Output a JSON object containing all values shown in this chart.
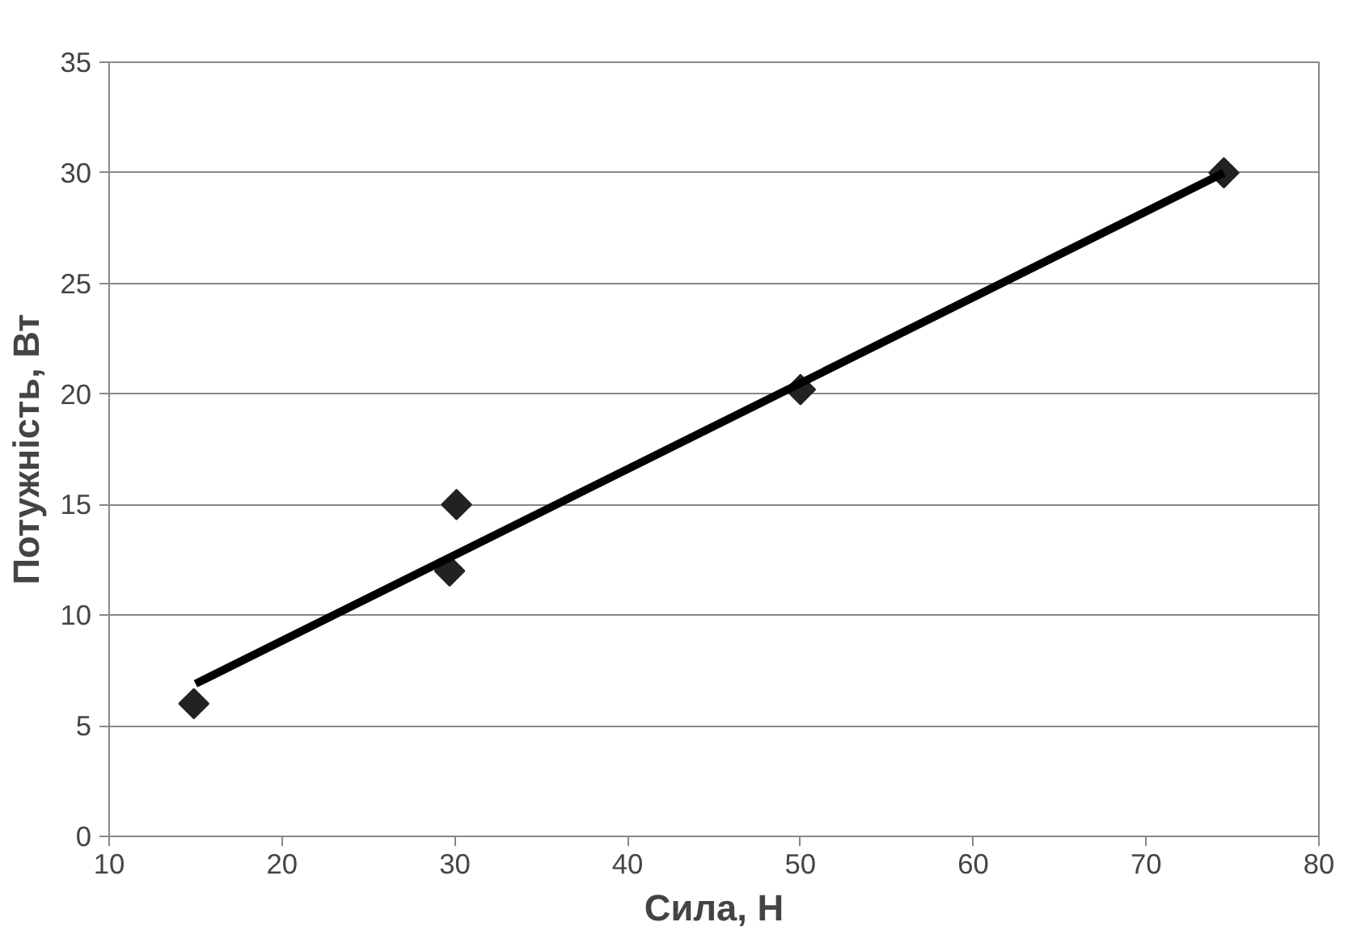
{
  "chart_data": {
    "type": "scatter",
    "xlabel": "Сила, Н",
    "ylabel": "Потужність, Вт",
    "xlim": [
      10,
      80
    ],
    "xticks": [
      10,
      20,
      30,
      40,
      50,
      60,
      70,
      80
    ],
    "ylim": [
      0,
      35
    ],
    "yticks": [
      0,
      5,
      10,
      15,
      20,
      25,
      30,
      35
    ],
    "grid": "y",
    "series": [
      {
        "color": "#222222",
        "marker": "diamond",
        "x": [
          14.9,
          29.7,
          30.1,
          50,
          74.5
        ],
        "values": [
          6,
          12,
          15,
          20.2,
          30
        ]
      },
      {
        "type": "line",
        "color": "#000000",
        "x": [
          15,
          74.5
        ],
        "values": [
          6.9,
          30
        ],
        "line_style": "solid"
      }
    ]
  }
}
